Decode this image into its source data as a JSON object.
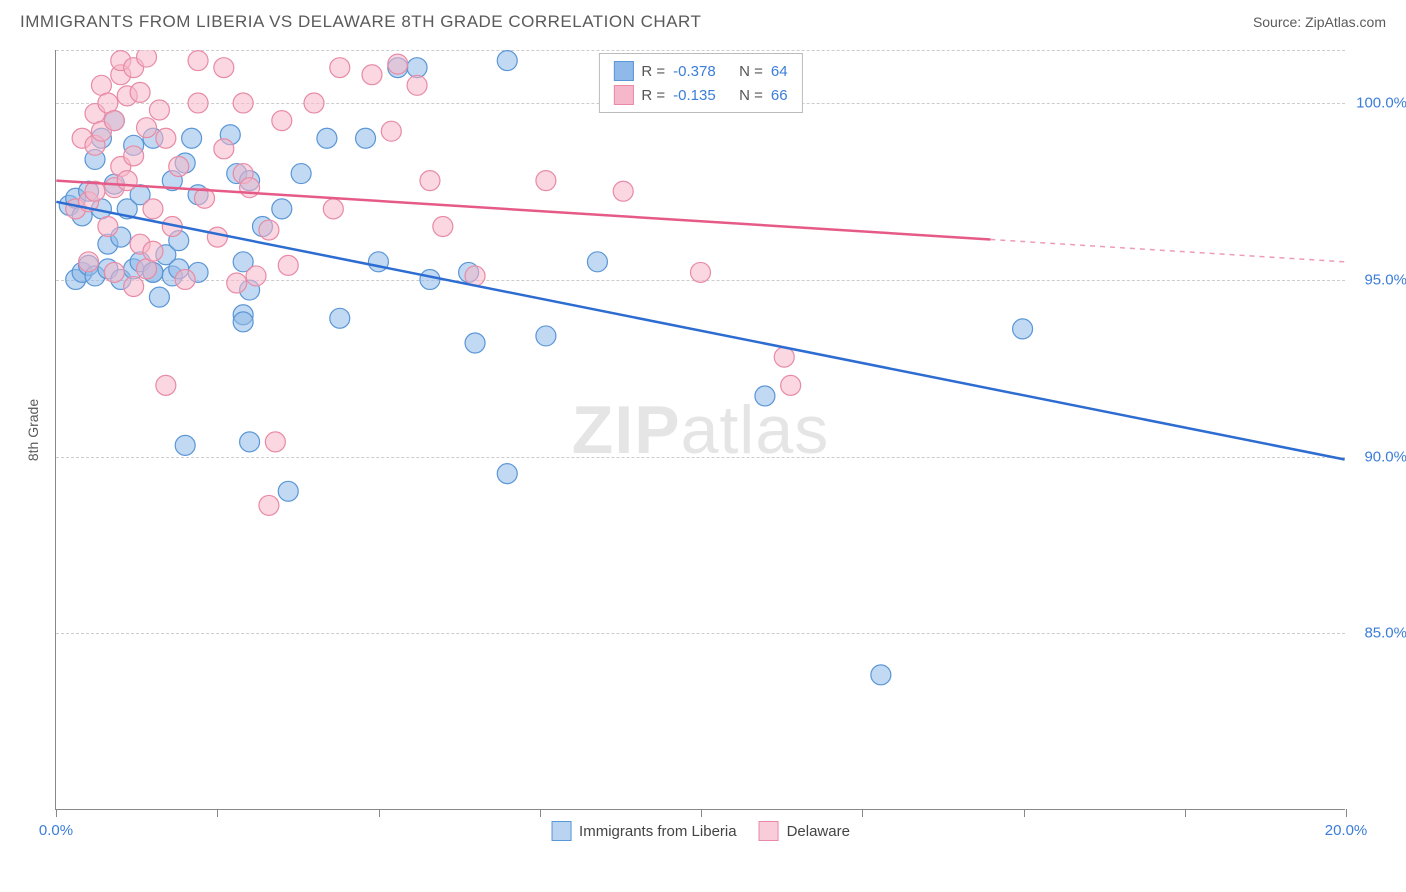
{
  "title": "IMMIGRANTS FROM LIBERIA VS DELAWARE 8TH GRADE CORRELATION CHART",
  "source": "Source: ZipAtlas.com",
  "y_axis_title": "8th Grade",
  "watermark": {
    "bold": "ZIP",
    "light": "atlas"
  },
  "chart": {
    "type": "scatter",
    "xlim": [
      0,
      20
    ],
    "ylim": [
      80,
      101.5
    ],
    "x_ticks": [
      0,
      2.5,
      5,
      7.5,
      10,
      12.5,
      15,
      17.5,
      20
    ],
    "x_tick_labels": {
      "0": "0.0%",
      "20": "20.0%"
    },
    "y_gridlines": [
      85,
      90,
      95,
      100,
      101.5
    ],
    "y_tick_labels": {
      "85": "85.0%",
      "90": "90.0%",
      "95": "95.0%",
      "100": "100.0%"
    },
    "grid_color": "#cccccc",
    "axis_color": "#888888",
    "background_color": "#ffffff",
    "tick_label_color": "#3b7dd8",
    "marker_radius": 10,
    "marker_opacity": 0.55,
    "series": [
      {
        "name": "Immigrants from Liberia",
        "color": "#8eb9e8",
        "stroke": "#5a96d6",
        "line_color": "#2d6cd1",
        "R": "-0.378",
        "N": "64",
        "trend": {
          "x1": 0,
          "y1": 97.2,
          "x2": 20,
          "y2": 89.9,
          "solid_end_x": 20
        },
        "points": [
          [
            0.2,
            97.1
          ],
          [
            0.3,
            97.3
          ],
          [
            0.3,
            95.0
          ],
          [
            0.4,
            96.8
          ],
          [
            0.4,
            95.2
          ],
          [
            0.5,
            97.5
          ],
          [
            0.5,
            95.4
          ],
          [
            0.6,
            98.4
          ],
          [
            0.6,
            95.1
          ],
          [
            0.7,
            99.0
          ],
          [
            0.7,
            97.0
          ],
          [
            0.8,
            96.0
          ],
          [
            0.8,
            95.3
          ],
          [
            0.9,
            97.7
          ],
          [
            0.9,
            99.5
          ],
          [
            1.0,
            96.2
          ],
          [
            1.0,
            95.0
          ],
          [
            1.1,
            97.0
          ],
          [
            1.2,
            98.8
          ],
          [
            1.2,
            95.3
          ],
          [
            1.3,
            95.5
          ],
          [
            1.3,
            97.4
          ],
          [
            1.5,
            95.2
          ],
          [
            1.5,
            99.0
          ],
          [
            1.5,
            95.2
          ],
          [
            1.6,
            94.5
          ],
          [
            1.7,
            95.7
          ],
          [
            1.8,
            97.8
          ],
          [
            1.8,
            95.1
          ],
          [
            1.9,
            96.1
          ],
          [
            1.9,
            95.3
          ],
          [
            2.0,
            90.3
          ],
          [
            2.0,
            98.3
          ],
          [
            2.1,
            99.0
          ],
          [
            2.2,
            95.2
          ],
          [
            2.2,
            97.4
          ],
          [
            2.7,
            99.1
          ],
          [
            2.8,
            98.0
          ],
          [
            2.9,
            95.5
          ],
          [
            2.9,
            94.0
          ],
          [
            2.9,
            93.8
          ],
          [
            3.0,
            94.7
          ],
          [
            3.0,
            97.8
          ],
          [
            3.0,
            90.4
          ],
          [
            3.2,
            96.5
          ],
          [
            3.5,
            97.0
          ],
          [
            3.6,
            89.0
          ],
          [
            3.8,
            98.0
          ],
          [
            4.2,
            99.0
          ],
          [
            4.4,
            93.9
          ],
          [
            4.8,
            99.0
          ],
          [
            5.0,
            95.5
          ],
          [
            5.3,
            101.0
          ],
          [
            5.6,
            101.0
          ],
          [
            5.8,
            95.0
          ],
          [
            6.4,
            95.2
          ],
          [
            6.5,
            93.2
          ],
          [
            7.0,
            101.2
          ],
          [
            7.0,
            89.5
          ],
          [
            7.6,
            93.4
          ],
          [
            8.4,
            95.5
          ],
          [
            11.0,
            91.7
          ],
          [
            12.8,
            83.8
          ],
          [
            15.0,
            93.6
          ]
        ]
      },
      {
        "name": "Delaware",
        "color": "#f5b7c9",
        "stroke": "#e88aa5",
        "line_color": "#e65a87",
        "R": "-0.135",
        "N": "66",
        "trend": {
          "x1": 0,
          "y1": 97.8,
          "x2": 20,
          "y2": 95.5,
          "solid_end_x": 14.5
        },
        "points": [
          [
            0.3,
            97.0
          ],
          [
            0.4,
            99.0
          ],
          [
            0.5,
            97.2
          ],
          [
            0.5,
            95.5
          ],
          [
            0.6,
            98.8
          ],
          [
            0.6,
            97.5
          ],
          [
            0.6,
            99.7
          ],
          [
            0.7,
            100.5
          ],
          [
            0.7,
            99.2
          ],
          [
            0.8,
            100.0
          ],
          [
            0.8,
            96.5
          ],
          [
            0.9,
            99.5
          ],
          [
            0.9,
            97.6
          ],
          [
            0.9,
            95.2
          ],
          [
            1.0,
            100.8
          ],
          [
            1.0,
            98.2
          ],
          [
            1.0,
            101.2
          ],
          [
            1.1,
            97.8
          ],
          [
            1.1,
            100.2
          ],
          [
            1.2,
            98.5
          ],
          [
            1.2,
            101.0
          ],
          [
            1.2,
            94.8
          ],
          [
            1.3,
            96.0
          ],
          [
            1.3,
            100.3
          ],
          [
            1.4,
            99.3
          ],
          [
            1.4,
            101.3
          ],
          [
            1.4,
            95.3
          ],
          [
            1.5,
            95.8
          ],
          [
            1.5,
            97.0
          ],
          [
            1.6,
            99.8
          ],
          [
            1.7,
            99.0
          ],
          [
            1.7,
            92.0
          ],
          [
            1.8,
            96.5
          ],
          [
            1.9,
            98.2
          ],
          [
            2.0,
            95.0
          ],
          [
            2.2,
            100.0
          ],
          [
            2.2,
            101.2
          ],
          [
            2.3,
            97.3
          ],
          [
            2.5,
            96.2
          ],
          [
            2.6,
            101.0
          ],
          [
            2.6,
            98.7
          ],
          [
            2.8,
            94.9
          ],
          [
            2.9,
            100.0
          ],
          [
            2.9,
            98.0
          ],
          [
            3.0,
            97.6
          ],
          [
            3.1,
            95.1
          ],
          [
            3.3,
            96.4
          ],
          [
            3.3,
            88.6
          ],
          [
            3.4,
            90.4
          ],
          [
            3.5,
            99.5
          ],
          [
            3.6,
            95.4
          ],
          [
            4.0,
            100.0
          ],
          [
            4.3,
            97.0
          ],
          [
            4.4,
            101.0
          ],
          [
            4.9,
            100.8
          ],
          [
            5.2,
            99.2
          ],
          [
            5.3,
            101.1
          ],
          [
            5.6,
            100.5
          ],
          [
            5.8,
            97.8
          ],
          [
            6.0,
            96.5
          ],
          [
            6.5,
            95.1
          ],
          [
            7.6,
            97.8
          ],
          [
            8.8,
            97.5
          ],
          [
            10.0,
            95.2
          ],
          [
            11.3,
            92.8
          ],
          [
            11.4,
            92.0
          ]
        ]
      }
    ]
  },
  "legend_bottom": [
    {
      "label": "Immigrants from Liberia",
      "fill": "#b9d4f0",
      "stroke": "#5a96d6"
    },
    {
      "label": "Delaware",
      "fill": "#f8cdd9",
      "stroke": "#e88aa5"
    }
  ]
}
